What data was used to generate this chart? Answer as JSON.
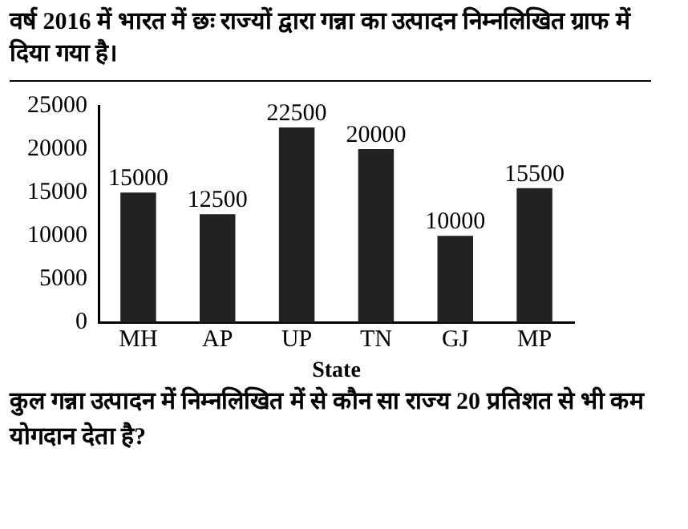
{
  "chart_data": {
    "type": "bar",
    "title": "वर्ष 2016 में भारत में छः राज्यों द्वारा गन्ना का उत्पादन निम्नलिखित ग्राफ में दिया गया है।",
    "xlabel": "State",
    "categories": [
      "MH",
      "AP",
      "UP",
      "TN",
      "GJ",
      "MP"
    ],
    "values": [
      15000,
      12500,
      22500,
      20000,
      10000,
      15500
    ],
    "color": "#222222",
    "ylim": [
      0,
      25000
    ],
    "yticks": [
      0,
      5000,
      10000,
      15000,
      20000,
      25000
    ],
    "grid": false,
    "legend": false,
    "data_labels": true,
    "annotations": [
      "कुल गन्ना उत्पादन में निम्नलिखित में से कौन सा राज्य 20 प्रतिशत से भी कम योगदान देता है?"
    ]
  }
}
